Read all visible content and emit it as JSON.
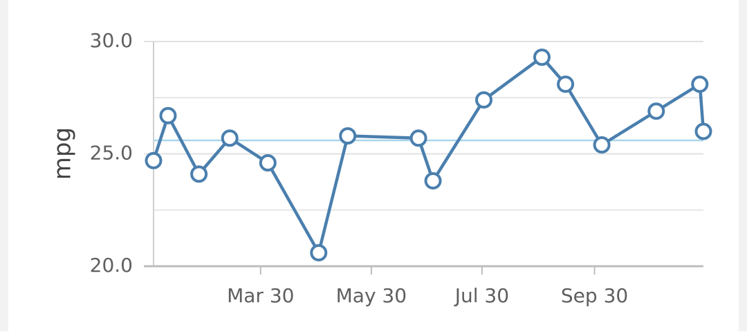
{
  "chart_data": {
    "type": "line",
    "y_label": "mpg",
    "x": [
      "Jan 30",
      "Feb 7",
      "Feb 24",
      "Mar 13",
      "Apr 3",
      "May 1",
      "May 17",
      "Jun 25",
      "Jul 3",
      "Jul 31",
      "Sep 1",
      "Sep 14",
      "Oct 4",
      "Nov 3",
      "Nov 27",
      "Nov 29"
    ],
    "series": [
      {
        "name": "mpg",
        "color": "#4a7fae",
        "values": [
          24.7,
          26.7,
          24.1,
          25.7,
          24.6,
          20.6,
          25.8,
          25.7,
          23.8,
          27.4,
          29.3,
          28.1,
          25.4,
          26.9,
          28.1,
          26.0
        ]
      }
    ],
    "average_line": {
      "value": 25.6,
      "color": "#a9d6ec"
    },
    "xlim": [
      "Jan 30",
      "Nov 29"
    ],
    "xticks": [
      "Mar 30",
      "May 30",
      "Jul 30",
      "Sep 30"
    ],
    "ylim": [
      20,
      30
    ],
    "yticks": [
      {
        "value": 20,
        "label": "20.0"
      },
      {
        "value": 25,
        "label": "25.0"
      },
      {
        "value": 30,
        "label": "30.0"
      }
    ],
    "minor_grid": [
      22.5,
      27.5
    ],
    "grid": true
  }
}
